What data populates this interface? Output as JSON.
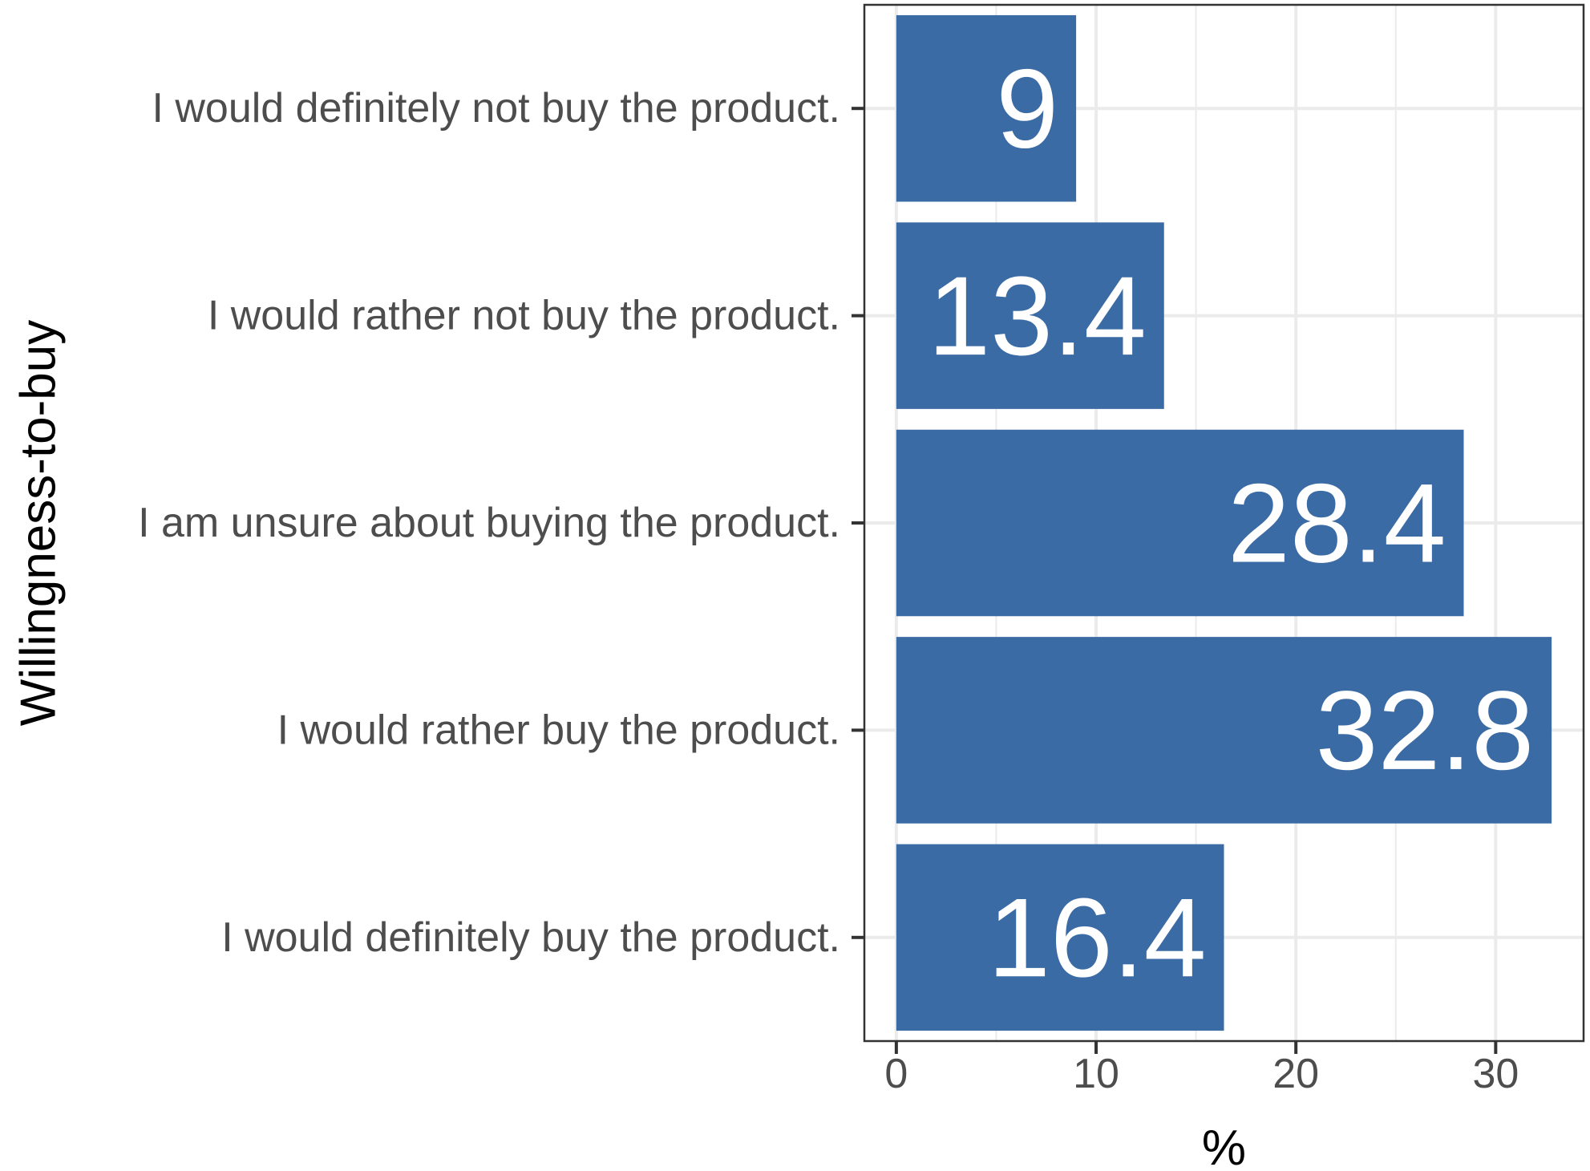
{
  "chart_data": {
    "type": "bar",
    "orientation": "horizontal",
    "categories": [
      "I would definitely not buy the product.",
      "I would rather not buy the product.",
      "I am unsure about buying the product.",
      "I would rather buy the product.",
      "I would definitely buy the product."
    ],
    "values": [
      9,
      13.4,
      28.4,
      32.8,
      16.4
    ],
    "data_labels": [
      "9",
      "13.4",
      "28.4",
      "32.8",
      "16.4"
    ],
    "xlabel": "%",
    "ylabel": "Willingness-to-buy",
    "xlim": [
      -1.6,
      34.4
    ],
    "xticks": [
      0,
      10,
      20,
      30
    ],
    "xtick_labels": [
      "0",
      "10",
      "20",
      "30"
    ],
    "grid": true,
    "colors": {
      "bar": "#3b6ba5",
      "grid": "#ebebeb",
      "panel_border": "#333333",
      "label": "#ffffff"
    }
  }
}
